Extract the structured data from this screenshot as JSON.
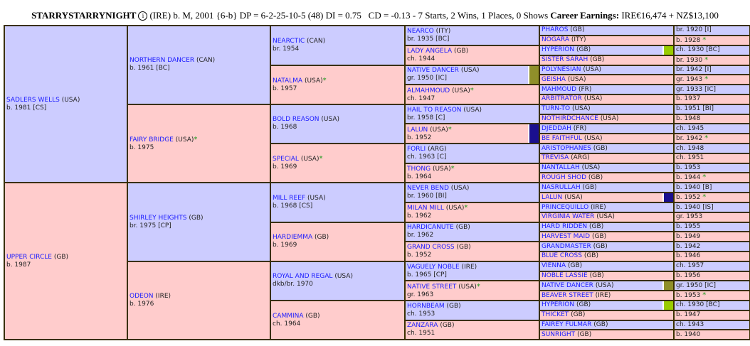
{
  "header": {
    "horse_name": "STARRYSTARRYNIGHT",
    "info_icon": "info-icon",
    "details": "(IRE) b. M, 2001 {6-b} DP = 6-2-25-10-5 (48) DI = 0.75   CD = -0.13 - 7 Starts, 2 Wins, 1 Places, 0 Shows ",
    "earnings_label": "Career Earnings:",
    "earnings_value": " IRE€16,474 + NZ$13,100"
  },
  "colors": {
    "sire_bg": "#ccccff",
    "dam_bg": "#ffcccc",
    "border": "#3a3000",
    "link": "#1a1aff",
    "star": "#1a9a1a"
  },
  "pedigree": {
    "gen1": [
      {
        "name": "SADLERS WELLS",
        "country": "(USA)",
        "info": "b. 1981 [CS]"
      },
      {
        "name": "UPPER CIRCLE",
        "country": "(GB)",
        "info": "b. 1987"
      }
    ],
    "gen2": [
      {
        "name": "NORTHERN DANCER",
        "country": "(CAN)",
        "info": "b. 1961 [BC]"
      },
      {
        "name": "FAIRY BRIDGE",
        "country": "(USA)",
        "star": "*",
        "info": "b. 1975"
      },
      {
        "name": "SHIRLEY HEIGHTS",
        "country": "(GB)",
        "info": "br. 1975 [CP]"
      },
      {
        "name": "ODEON",
        "country": "(IRE)",
        "info": "b. 1976"
      }
    ],
    "gen3": [
      {
        "name": "NEARCTIC",
        "country": "(CAN)",
        "info": "br. 1954"
      },
      {
        "name": "NATALMA",
        "country": "(USA)",
        "star": "*",
        "info": "b. 1957"
      },
      {
        "name": "BOLD REASON",
        "country": "(USA)",
        "info": "b. 1968"
      },
      {
        "name": "SPECIAL",
        "country": "(USA)",
        "star": "*",
        "info": "b. 1969"
      },
      {
        "name": "MILL REEF",
        "country": "(USA)",
        "info": "b. 1968 [CS]"
      },
      {
        "name": "HARDIEMMA",
        "country": "(GB)",
        "info": "b. 1969"
      },
      {
        "name": "ROYAL AND REGAL",
        "country": "(USA)",
        "info": "dkb/br. 1970"
      },
      {
        "name": "CAMMINA",
        "country": "(GB)",
        "info": "ch. 1964"
      }
    ],
    "gen4": [
      {
        "name": "NEARCO",
        "country": "(ITY)",
        "info": "br. 1935 [BC]"
      },
      {
        "name": "LADY ANGELA",
        "country": "(GB)",
        "info": "ch. 1944"
      },
      {
        "name": "NATIVE DANCER",
        "country": "(USA)",
        "info": "gr. 1950 [IC]",
        "chip": "#8f8f2a"
      },
      {
        "name": "ALMAHMOUD",
        "country": "(USA)",
        "star": "*",
        "info": "ch. 1947"
      },
      {
        "name": "HAIL TO REASON",
        "country": "(USA)",
        "info": "br. 1958 [C]"
      },
      {
        "name": "LALUN",
        "country": "(USA)",
        "star": "*",
        "info": "b. 1952",
        "chip": "#1a0f8f"
      },
      {
        "name": "FORLI",
        "country": "(ARG)",
        "info": "ch. 1963 [C]"
      },
      {
        "name": "THONG",
        "country": "(USA)",
        "star": "*",
        "info": "b. 1964"
      },
      {
        "name": "NEVER BEND",
        "country": "(USA)",
        "info": "br. 1960 [BI]"
      },
      {
        "name": "MILAN MILL",
        "country": "(USA)",
        "star": "*",
        "info": "b. 1962"
      },
      {
        "name": "HARDICANUTE",
        "country": "(GB)",
        "info": "br. 1962"
      },
      {
        "name": "GRAND CROSS",
        "country": "(GB)",
        "info": "b. 1952"
      },
      {
        "name": "VAGUELY NOBLE",
        "country": "(IRE)",
        "info": "b. 1965 [CP]"
      },
      {
        "name": "NATIVE STREET",
        "country": "(USA)",
        "star": "*",
        "info": "gr. 1963"
      },
      {
        "name": "HORNBEAM",
        "country": "(GB)",
        "info": "ch. 1953"
      },
      {
        "name": "ZANZARA",
        "country": "(GB)",
        "info": "ch. 1951"
      }
    ],
    "gen5": [
      {
        "name": "PHAROS",
        "country": "(GB)",
        "info": "br. 1920 [I]"
      },
      {
        "name": "NOGARA",
        "country": "(ITY)",
        "info": "b. 1928",
        "star": "*"
      },
      {
        "name": "HYPERION",
        "country": "(GB)",
        "info": "ch. 1930 [BC]",
        "chip": "#99cc00"
      },
      {
        "name": "SISTER SARAH",
        "country": "(GB)",
        "info": "br. 1930",
        "star": "*"
      },
      {
        "name": "POLYNESIAN",
        "country": "(USA)",
        "info": "br. 1942 [I]"
      },
      {
        "name": "GEISHA",
        "country": "(USA)",
        "info": "gr. 1943",
        "star": "*"
      },
      {
        "name": "MAHMOUD",
        "country": "(FR)",
        "info": "gr. 1933 [IC]"
      },
      {
        "name": "ARBITRATOR",
        "country": "(USA)",
        "info": "b. 1937"
      },
      {
        "name": "TURN-TO",
        "country": "(USA)",
        "info": "b. 1951 [BI]"
      },
      {
        "name": "NOTHIRDCHANCE",
        "country": "(USA)",
        "info": "b. 1948"
      },
      {
        "name": "DJEDDAH",
        "country": "(FR)",
        "info": "ch. 1945"
      },
      {
        "name": "BE FAITHFUL",
        "country": "(USA)",
        "info": "br. 1942",
        "star": "*"
      },
      {
        "name": "ARISTOPHANES",
        "country": "(GB)",
        "info": "ch. 1948"
      },
      {
        "name": "TREVISA",
        "country": "(ARG)",
        "info": "ch. 1951"
      },
      {
        "name": "NANTALLAH",
        "country": "(USA)",
        "info": "b. 1953"
      },
      {
        "name": "ROUGH SHOD",
        "country": "(GB)",
        "info": "b. 1944",
        "star": "*"
      },
      {
        "name": "NASRULLAH",
        "country": "(GB)",
        "info": "b. 1940 [B]"
      },
      {
        "name": "LALUN",
        "country": "(USA)",
        "info": "b. 1952",
        "star": "*",
        "chip": "#1a0f8f"
      },
      {
        "name": "PRINCEQUILLO",
        "country": "(IRE)",
        "info": "b. 1940 [IS]"
      },
      {
        "name": "VIRGINIA WATER",
        "country": "(USA)",
        "info": "gr. 1953"
      },
      {
        "name": "HARD RIDDEN",
        "country": "(GB)",
        "info": "b. 1955"
      },
      {
        "name": "HARVEST MAID",
        "country": "(GB)",
        "info": "b. 1949"
      },
      {
        "name": "GRANDMASTER",
        "country": "(GB)",
        "info": "b. 1942"
      },
      {
        "name": "BLUE CROSS",
        "country": "(GB)",
        "info": "b. 1946"
      },
      {
        "name": "VIENNA",
        "country": "(GB)",
        "info": "ch. 1957"
      },
      {
        "name": "NOBLE LASSIE",
        "country": "(GB)",
        "info": "b. 1956"
      },
      {
        "name": "NATIVE DANCER",
        "country": "(USA)",
        "info": "gr. 1950 [IC]",
        "chip": "#8f8f2a"
      },
      {
        "name": "BEAVER STREET",
        "country": "(IRE)",
        "info": "b. 1953",
        "star": "*"
      },
      {
        "name": "HYPERION",
        "country": "(GB)",
        "info": "ch. 1930 [BC]",
        "chip": "#99cc00"
      },
      {
        "name": "THICKET",
        "country": "(GB)",
        "info": "b. 1947"
      },
      {
        "name": "FAIREY FULMAR",
        "country": "(GB)",
        "info": "ch. 1943"
      },
      {
        "name": "SUNRIGHT",
        "country": "(GB)",
        "info": "b. 1940"
      }
    ]
  }
}
